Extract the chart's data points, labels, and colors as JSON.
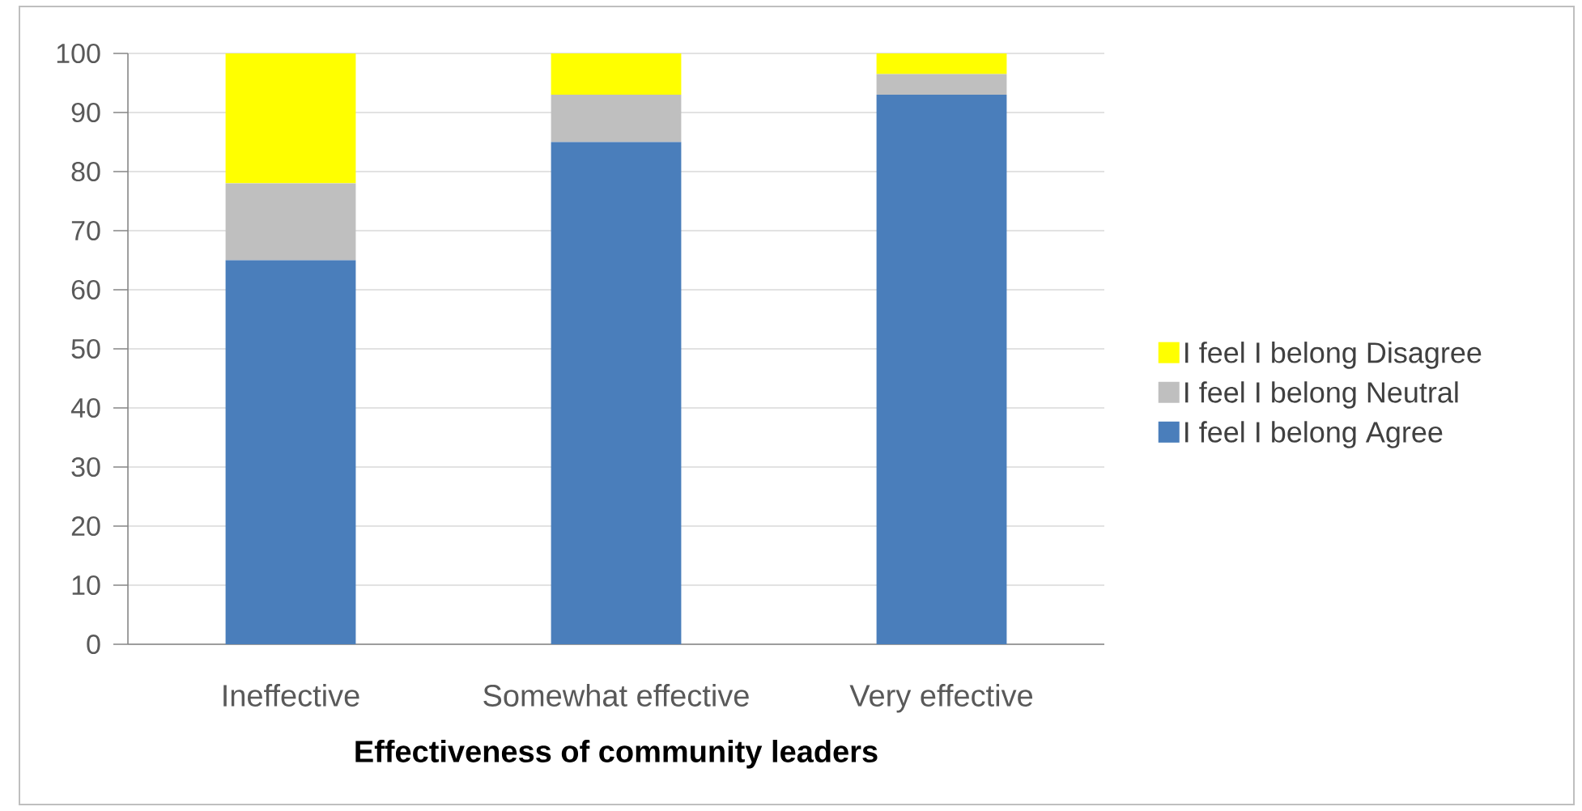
{
  "chart_data": {
    "type": "bar",
    "stacked": true,
    "xlabel": "Effectiveness of community leaders",
    "categories": [
      "Ineffective",
      "Somewhat effective",
      "Very effective"
    ],
    "series": [
      {
        "name": "I feel I belong Agree",
        "color": "#4a7ebb",
        "values": [
          65,
          85,
          93
        ]
      },
      {
        "name": "I feel I belong Neutral",
        "color": "#bfbfbf",
        "values": [
          13,
          8,
          3.5
        ]
      },
      {
        "name": "I feel I belong Disagree",
        "color": "#ffff00",
        "values": [
          22,
          7,
          3.5
        ]
      }
    ],
    "ylim": [
      0,
      100
    ],
    "yticks": [
      0,
      10,
      20,
      30,
      40,
      50,
      60,
      70,
      80,
      90,
      100
    ],
    "grid": "y",
    "legend": "right"
  }
}
